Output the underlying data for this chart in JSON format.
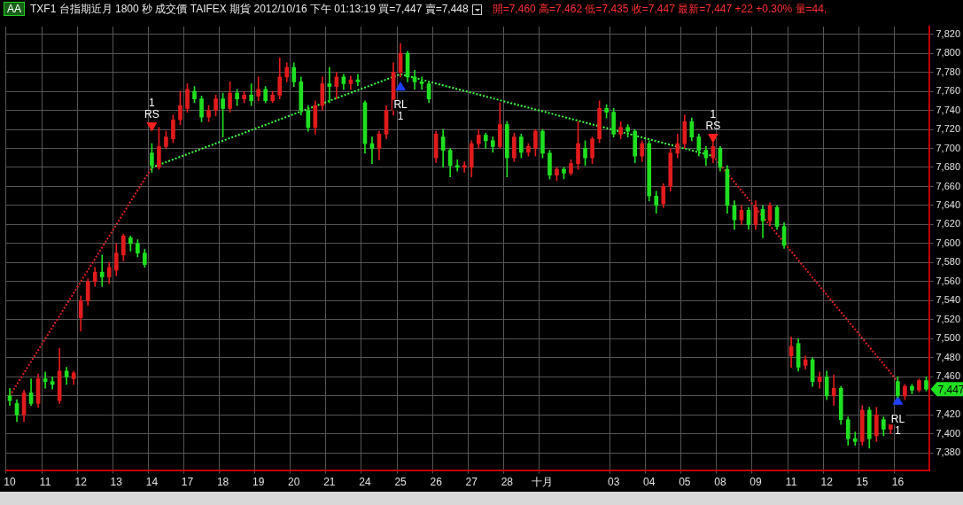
{
  "chart_data": {
    "type": "candlestick",
    "title": "TXF1 台指期近月 1800 秒 成交價 TAIFEX 期貨 2012/10/16 下午 01:13:19 買=7,447 賣=7,448",
    "subtitle": "開=7,460 高=7,462 低=7,435 收=7,447 最新=7,447 +22 +0.30% 量=44,",
    "annotations": [
      "AA",
      "7,447"
    ],
    "categories": [
      "10",
      null,
      null,
      null,
      null,
      "11",
      null,
      null,
      null,
      null,
      "12",
      null,
      null,
      null,
      null,
      "13",
      null,
      null,
      null,
      null,
      "14",
      null,
      null,
      null,
      null,
      "17",
      null,
      null,
      null,
      null,
      "18",
      null,
      null,
      null,
      null,
      "19",
      null,
      null,
      null,
      null,
      "20",
      null,
      null,
      null,
      null,
      "21",
      null,
      null,
      null,
      null,
      "24",
      null,
      null,
      null,
      null,
      "25",
      null,
      null,
      null,
      null,
      "26",
      null,
      null,
      null,
      null,
      "27",
      null,
      null,
      null,
      null,
      "28",
      null,
      null,
      null,
      null,
      "十月",
      null,
      null,
      null,
      null,
      null,
      null,
      null,
      null,
      null,
      "03",
      null,
      null,
      null,
      null,
      "04",
      null,
      null,
      null,
      null,
      "05",
      null,
      null,
      null,
      null,
      "08",
      null,
      null,
      null,
      null,
      "09",
      null,
      null,
      null,
      null,
      "11",
      null,
      null,
      null,
      null,
      "12",
      null,
      null,
      null,
      null,
      "15",
      null,
      null,
      null,
      null,
      "16",
      null,
      null,
      null,
      null
    ],
    "ohlc": [
      [
        7440,
        7448,
        7430,
        7435
      ],
      [
        7432,
        7436,
        7413,
        7420
      ],
      [
        7420,
        7446,
        7413,
        7443
      ],
      [
        7443,
        7458,
        7430,
        7432
      ],
      [
        7432,
        7463,
        7428,
        7458
      ],
      [
        7458,
        7465,
        7448,
        7455
      ],
      [
        7455,
        7460,
        7447,
        7452
      ],
      [
        7435,
        7490,
        7432,
        7466
      ],
      [
        7466,
        7470,
        7452,
        7460
      ],
      [
        7458,
        7466,
        7452,
        7464
      ],
      [
        7522,
        7545,
        7508,
        7540
      ],
      [
        7540,
        7563,
        7535,
        7560
      ],
      [
        7560,
        7575,
        7555,
        7570
      ],
      [
        7570,
        7588,
        7555,
        7565
      ],
      [
        7565,
        7580,
        7558,
        7575
      ],
      [
        7572,
        7600,
        7566,
        7590
      ],
      [
        7588,
        7610,
        7582,
        7608
      ],
      [
        7606,
        7608,
        7592,
        7600
      ],
      [
        7600,
        7604,
        7586,
        7590
      ],
      [
        7590,
        7594,
        7575,
        7578
      ],
      [
        7695,
        7705,
        7675,
        7682
      ],
      [
        7680,
        7722,
        7678,
        7702
      ],
      [
        7702,
        7718,
        7700,
        7712
      ],
      [
        7710,
        7735,
        7706,
        7730
      ],
      [
        7730,
        7760,
        7725,
        7745
      ],
      [
        7742,
        7768,
        7738,
        7762
      ],
      [
        7760,
        7765,
        7748,
        7752
      ],
      [
        7752,
        7755,
        7728,
        7733
      ],
      [
        7733,
        7745,
        7728,
        7740
      ],
      [
        7740,
        7756,
        7734,
        7752
      ],
      [
        7752,
        7758,
        7712,
        7742
      ],
      [
        7742,
        7770,
        7738,
        7758
      ],
      [
        7758,
        7762,
        7745,
        7752
      ],
      [
        7752,
        7760,
        7748,
        7756
      ],
      [
        7756,
        7768,
        7745,
        7750
      ],
      [
        7755,
        7775,
        7750,
        7762
      ],
      [
        7762,
        7765,
        7748,
        7750
      ],
      [
        7750,
        7760,
        7748,
        7756
      ],
      [
        7756,
        7795,
        7752,
        7775
      ],
      [
        7775,
        7790,
        7770,
        7785
      ],
      [
        7785,
        7790,
        7765,
        7770
      ],
      [
        7770,
        7775,
        7735,
        7740
      ],
      [
        7740,
        7745,
        7718,
        7722
      ],
      [
        7722,
        7750,
        7715,
        7745
      ],
      [
        7745,
        7775,
        7740,
        7768
      ],
      [
        7768,
        7785,
        7748,
        7765
      ],
      [
        7765,
        7780,
        7752,
        7775
      ],
      [
        7775,
        7778,
        7762,
        7768
      ],
      [
        7768,
        7776,
        7762,
        7772
      ],
      [
        7772,
        7778,
        7766,
        7770
      ],
      [
        7748,
        7750,
        7695,
        7705
      ],
      [
        7705,
        7712,
        7684,
        7700
      ],
      [
        7700,
        7718,
        7688,
        7715
      ],
      [
        7715,
        7745,
        7710,
        7740
      ],
      [
        7740,
        7790,
        7735,
        7780
      ],
      [
        7780,
        7810,
        7775,
        7800
      ],
      [
        7800,
        7802,
        7770,
        7775
      ],
      [
        7775,
        7782,
        7762,
        7770
      ],
      [
        7770,
        7775,
        7762,
        7768
      ],
      [
        7768,
        7770,
        7748,
        7752
      ],
      [
        7690,
        7718,
        7685,
        7715
      ],
      [
        7712,
        7720,
        7680,
        7698
      ],
      [
        7698,
        7700,
        7670,
        7682
      ],
      [
        7682,
        7688,
        7676,
        7680
      ],
      [
        7680,
        7686,
        7675,
        7682
      ],
      [
        7680,
        7708,
        7670,
        7705
      ],
      [
        7705,
        7720,
        7700,
        7714
      ],
      [
        7714,
        7716,
        7700,
        7708
      ],
      [
        7708,
        7712,
        7696,
        7702
      ],
      [
        7702,
        7748,
        7700,
        7725
      ],
      [
        7725,
        7728,
        7670,
        7690
      ],
      [
        7690,
        7716,
        7686,
        7712
      ],
      [
        7712,
        7715,
        7690,
        7696
      ],
      [
        7696,
        7705,
        7692,
        7702
      ],
      [
        7700,
        7720,
        7692,
        7718
      ],
      [
        7718,
        7720,
        7690,
        7695
      ],
      [
        7695,
        7698,
        7668,
        7672
      ],
      [
        7672,
        7680,
        7666,
        7678
      ],
      [
        7678,
        7680,
        7668,
        7674
      ],
      [
        7674,
        7688,
        7672,
        7684
      ],
      [
        7684,
        7728,
        7678,
        7705
      ],
      [
        7700,
        7708,
        7682,
        7690
      ],
      [
        7690,
        7712,
        7684,
        7710
      ],
      [
        7710,
        7750,
        7706,
        7742
      ],
      [
        7742,
        7746,
        7732,
        7738
      ],
      [
        7738,
        7742,
        7712,
        7715
      ],
      [
        7715,
        7728,
        7710,
        7722
      ],
      [
        7722,
        7725,
        7712,
        7718
      ],
      [
        7718,
        7720,
        7685,
        7692
      ],
      [
        7692,
        7708,
        7686,
        7705
      ],
      [
        7705,
        7708,
        7645,
        7650
      ],
      [
        7650,
        7655,
        7632,
        7640
      ],
      [
        7642,
        7663,
        7638,
        7660
      ],
      [
        7660,
        7700,
        7655,
        7695
      ],
      [
        7695,
        7715,
        7690,
        7705
      ],
      [
        7705,
        7735,
        7700,
        7728
      ],
      [
        7728,
        7732,
        7708,
        7712
      ],
      [
        7712,
        7715,
        7692,
        7698
      ],
      [
        7698,
        7702,
        7682,
        7690
      ],
      [
        7690,
        7706,
        7685,
        7702
      ],
      [
        7700,
        7702,
        7676,
        7680
      ],
      [
        7678,
        7682,
        7632,
        7640
      ],
      [
        7640,
        7645,
        7615,
        7625
      ],
      [
        7625,
        7640,
        7620,
        7635
      ],
      [
        7635,
        7638,
        7615,
        7620
      ],
      [
        7620,
        7645,
        7615,
        7638
      ],
      [
        7636,
        7640,
        7606,
        7624
      ],
      [
        7624,
        7643,
        7620,
        7640
      ],
      [
        7638,
        7640,
        7615,
        7618
      ],
      [
        7618,
        7622,
        7595,
        7598
      ],
      [
        7482,
        7502,
        7470,
        7492
      ],
      [
        7495,
        7500,
        7466,
        7470
      ],
      [
        7472,
        7482,
        7468,
        7478
      ],
      [
        7478,
        7480,
        7450,
        7455
      ],
      [
        7455,
        7465,
        7448,
        7460
      ],
      [
        7460,
        7466,
        7436,
        7440
      ],
      [
        7440,
        7462,
        7430,
        7448
      ],
      [
        7448,
        7450,
        7410,
        7415
      ],
      [
        7415,
        7418,
        7388,
        7395
      ],
      [
        7395,
        7402,
        7388,
        7392
      ],
      [
        7392,
        7430,
        7388,
        7425
      ],
      [
        7425,
        7428,
        7385,
        7395
      ],
      [
        7398,
        7428,
        7392,
        7420
      ],
      [
        7415,
        7418,
        7398,
        7405
      ],
      [
        7405,
        7412,
        7400,
        7410
      ],
      [
        7455,
        7460,
        7438,
        7440
      ],
      [
        7440,
        7452,
        7436,
        7450
      ],
      [
        7450,
        7452,
        7442,
        7446
      ],
      [
        7446,
        7458,
        7444,
        7456
      ],
      [
        7456,
        7460,
        7445,
        7447
      ]
    ],
    "colors": [
      "#1fe01f",
      "#1fe01f",
      "#e01b1b",
      "#1fe01f",
      "#e01b1b",
      "#1fe01f",
      "#1fe01f",
      "#e01b1b",
      "#1fe01f",
      "#e01b1b",
      "#e01b1b",
      "#e01b1b",
      "#e01b1b",
      "#1fe01f",
      "#e01b1b",
      "#e01b1b",
      "#e01b1b",
      "#1fe01f",
      "#1fe01f",
      "#1fe01f",
      "#1fe01f",
      "#e01b1b",
      "#e01b1b",
      "#e01b1b",
      "#e01b1b",
      "#e01b1b",
      "#1fe01f",
      "#1fe01f",
      "#e01b1b",
      "#e01b1b",
      "#1fe01f",
      "#e01b1b",
      "#1fe01f",
      "#e01b1b",
      "#1fe01f",
      "#e01b1b",
      "#1fe01f",
      "#e01b1b",
      "#e01b1b",
      "#e01b1b",
      "#1fe01f",
      "#1fe01f",
      "#1fe01f",
      "#e01b1b",
      "#e01b1b",
      "#1fe01f",
      "#e01b1b",
      "#1fe01f",
      "#e01b1b",
      "#1fe01f",
      "#1fe01f",
      "#1fe01f",
      "#e01b1b",
      "#e01b1b",
      "#e01b1b",
      "#e01b1b",
      "#1fe01f",
      "#1fe01f",
      "#1fe01f",
      "#1fe01f",
      "#e01b1b",
      "#1fe01f",
      "#1fe01f",
      "#1fe01f",
      "#e01b1b",
      "#e01b1b",
      "#e01b1b",
      "#1fe01f",
      "#1fe01f",
      "#e01b1b",
      "#1fe01f",
      "#e01b1b",
      "#1fe01f",
      "#e01b1b",
      "#e01b1b",
      "#1fe01f",
      "#1fe01f",
      "#e01b1b",
      "#1fe01f",
      "#e01b1b",
      "#e01b1b",
      "#1fe01f",
      "#e01b1b",
      "#e01b1b",
      "#1fe01f",
      "#1fe01f",
      "#e01b1b",
      "#1fe01f",
      "#1fe01f",
      "#e01b1b",
      "#1fe01f",
      "#1fe01f",
      "#e01b1b",
      "#e01b1b",
      "#e01b1b",
      "#e01b1b",
      "#1fe01f",
      "#1fe01f",
      "#1fe01f",
      "#e01b1b",
      "#1fe01f",
      "#1fe01f",
      "#1fe01f",
      "#e01b1b",
      "#1fe01f",
      "#e01b1b",
      "#1fe01f",
      "#e01b1b",
      "#1fe01f",
      "#1fe01f",
      "#e01b1b",
      "#1fe01f",
      "#e01b1b",
      "#1fe01f",
      "#e01b1b",
      "#1fe01f",
      "#e01b1b",
      "#1fe01f",
      "#1fe01f",
      "#1fe01f",
      "#e01b1b",
      "#1fe01f",
      "#e01b1b",
      "#1fe01f",
      "#e01b1b",
      "#1fe01f",
      "#e01b1b",
      "#1fe01f",
      "#e01b1b",
      "#1fe01f"
    ],
    "series": [
      {
        "type": "line",
        "color": "#e02020",
        "line_style": "dotted",
        "marker": "none",
        "values": [
          7440,
          null,
          null,
          null,
          null,
          null,
          null,
          null,
          null,
          null,
          null,
          null,
          null,
          null,
          null,
          null,
          null,
          null,
          null,
          null,
          7680,
          null,
          null,
          null,
          null,
          null,
          null,
          null,
          null,
          null,
          null,
          null,
          null,
          null,
          null,
          null,
          null,
          null,
          null,
          null,
          null,
          null,
          null,
          null,
          null,
          null,
          null,
          null,
          null,
          null,
          null,
          null,
          null,
          null,
          null,
          null,
          null,
          null,
          null,
          null,
          null,
          null,
          null,
          null,
          null,
          null,
          null,
          null,
          null,
          null,
          null,
          null,
          null,
          null,
          null,
          null,
          null,
          null,
          null,
          null,
          null,
          null,
          null,
          null,
          null,
          null,
          null,
          null,
          null,
          null,
          null,
          null,
          null,
          null,
          null,
          null,
          null,
          null,
          null,
          null,
          null,
          null,
          null,
          null,
          null,
          null,
          null,
          null,
          null,
          null,
          null,
          null,
          null,
          null,
          null,
          null,
          null,
          null,
          null,
          null,
          null,
          null,
          null,
          null,
          null,
          null,
          null,
          null,
          null,
          null
        ]
      },
      {
        "type": "line",
        "color": "#40ff40",
        "line_style": "dotted",
        "marker": "none",
        "values": [
          null,
          null,
          null,
          null,
          null,
          null,
          null,
          null,
          null,
          null,
          null,
          null,
          null,
          null,
          null,
          null,
          null,
          null,
          null,
          null,
          7680,
          null,
          null,
          null,
          null,
          null,
          null,
          null,
          null,
          null,
          null,
          null,
          null,
          null,
          null,
          null,
          null,
          null,
          null,
          null,
          null,
          null,
          null,
          null,
          null,
          null,
          null,
          null,
          null,
          null,
          null,
          null,
          null,
          null,
          null,
          7778,
          null,
          null,
          null,
          null,
          null,
          null,
          null,
          null,
          null,
          null,
          null,
          null,
          null,
          null,
          null,
          null,
          null,
          null,
          null,
          null,
          null,
          null,
          null,
          null,
          null,
          null,
          null,
          null,
          null,
          null,
          null,
          null,
          null,
          null,
          null,
          null,
          null,
          null,
          null,
          null,
          null,
          null,
          null,
          7692,
          null,
          null,
          null,
          null,
          null,
          null,
          null,
          null,
          null,
          null,
          null,
          null,
          null,
          null,
          null,
          null,
          null,
          null,
          null,
          null,
          null,
          null,
          null,
          null,
          null,
          null,
          null,
          null,
          null,
          null
        ]
      },
      {
        "type": "line",
        "color": "#e02020",
        "line_style": "dotted",
        "marker": "none",
        "values": [
          null,
          null,
          null,
          null,
          null,
          null,
          null,
          null,
          null,
          null,
          null,
          null,
          null,
          null,
          null,
          null,
          null,
          null,
          null,
          null,
          null,
          null,
          null,
          null,
          null,
          null,
          null,
          null,
          null,
          null,
          null,
          null,
          null,
          null,
          null,
          null,
          null,
          null,
          null,
          null,
          null,
          null,
          null,
          null,
          null,
          null,
          null,
          null,
          null,
          null,
          null,
          null,
          null,
          null,
          null,
          null,
          null,
          null,
          null,
          null,
          null,
          null,
          null,
          null,
          null,
          null,
          null,
          null,
          null,
          null,
          null,
          null,
          null,
          null,
          null,
          null,
          null,
          null,
          null,
          null,
          null,
          null,
          null,
          null,
          null,
          null,
          null,
          null,
          null,
          null,
          null,
          null,
          null,
          null,
          null,
          null,
          null,
          null,
          null,
          7692,
          null,
          null,
          null,
          null,
          null,
          null,
          null,
          null,
          null,
          null,
          null,
          null,
          null,
          null,
          null,
          null,
          null,
          null,
          null,
          null,
          null,
          null,
          null,
          null,
          null,
          7455,
          null,
          null,
          null,
          null
        ]
      },
      {
        "type": "scatter",
        "name": "1 RS",
        "color": "#ff2020",
        "marker": "triangle",
        "values": [
          null,
          null,
          null,
          null,
          null,
          null,
          null,
          null,
          null,
          null,
          null,
          null,
          null,
          null,
          null,
          null,
          null,
          null,
          null,
          null,
          7724,
          null,
          null,
          null,
          null,
          null,
          null,
          null,
          null,
          null,
          null,
          null,
          null,
          null,
          null,
          null,
          null,
          null,
          null,
          null,
          null,
          null,
          null,
          null,
          null,
          null,
          null,
          null,
          null,
          null,
          null,
          null,
          null,
          null,
          null,
          null,
          null,
          null,
          null,
          null,
          null,
          null,
          null,
          null,
          null,
          null,
          null,
          null,
          null,
          null,
          null,
          null,
          null,
          null,
          null,
          null,
          null,
          null,
          null,
          null,
          null,
          null,
          null,
          null,
          null,
          null,
          null,
          null,
          null,
          null,
          null,
          null,
          null,
          null,
          null,
          null,
          null,
          null,
          null,
          7712,
          null,
          null,
          null,
          null,
          null,
          null,
          null,
          null,
          null,
          null,
          null,
          null,
          null,
          null,
          null,
          null,
          null,
          null,
          null,
          null,
          null,
          null,
          null,
          null,
          null,
          null,
          null,
          null,
          null,
          null
        ]
      },
      {
        "type": "scatter",
        "name": "RL 1",
        "color": "#2040ff",
        "marker": "triangle",
        "values": [
          null,
          null,
          null,
          null,
          null,
          null,
          null,
          null,
          null,
          null,
          null,
          null,
          null,
          null,
          null,
          null,
          null,
          null,
          null,
          null,
          null,
          null,
          null,
          null,
          null,
          null,
          null,
          null,
          null,
          null,
          null,
          null,
          null,
          null,
          null,
          null,
          null,
          null,
          null,
          null,
          null,
          null,
          null,
          null,
          null,
          null,
          null,
          null,
          null,
          null,
          null,
          null,
          null,
          null,
          null,
          7764,
          null,
          null,
          null,
          null,
          null,
          null,
          null,
          null,
          null,
          null,
          null,
          null,
          null,
          null,
          null,
          null,
          null,
          null,
          null,
          null,
          null,
          null,
          null,
          null,
          null,
          null,
          null,
          null,
          null,
          null,
          null,
          null,
          null,
          null,
          null,
          null,
          null,
          null,
          null,
          null,
          null,
          null,
          null,
          null,
          null,
          null,
          null,
          null,
          null,
          null,
          null,
          null,
          null,
          null,
          null,
          null,
          null,
          null,
          null,
          null,
          null,
          null,
          null,
          null,
          null,
          null,
          null,
          null,
          null,
          7434,
          null,
          null,
          null,
          null
        ]
      }
    ],
    "ylim": [
      7362,
      7828
    ],
    "yticks": [
      {
        "value": 7380,
        "label": "7,380"
      },
      {
        "value": 7400,
        "label": "7,400"
      },
      {
        "value": 7420,
        "label": "7,420"
      },
      {
        "value": 7440,
        "label": null
      },
      {
        "value": 7460,
        "label": "7,460"
      },
      {
        "value": 7480,
        "label": "7,480"
      },
      {
        "value": 7500,
        "label": "7,500"
      },
      {
        "value": 7520,
        "label": "7,520"
      },
      {
        "value": 7540,
        "label": "7,540"
      },
      {
        "value": 7560,
        "label": "7,560"
      },
      {
        "value": 7580,
        "label": "7,580"
      },
      {
        "value": 7600,
        "label": "7,600"
      },
      {
        "value": 7620,
        "label": "7,620"
      },
      {
        "value": 7640,
        "label": "7,640"
      },
      {
        "value": 7660,
        "label": "7,660"
      },
      {
        "value": 7680,
        "label": "7,680"
      },
      {
        "value": 7700,
        "label": "7,700"
      },
      {
        "value": 7720,
        "label": "7,720"
      },
      {
        "value": 7740,
        "label": "7,740"
      },
      {
        "value": 7760,
        "label": "7,760"
      },
      {
        "value": 7780,
        "label": "7,780"
      },
      {
        "value": 7800,
        "label": "7,800"
      },
      {
        "value": 7820,
        "label": "7,820"
      }
    ],
    "grid": true
  }
}
